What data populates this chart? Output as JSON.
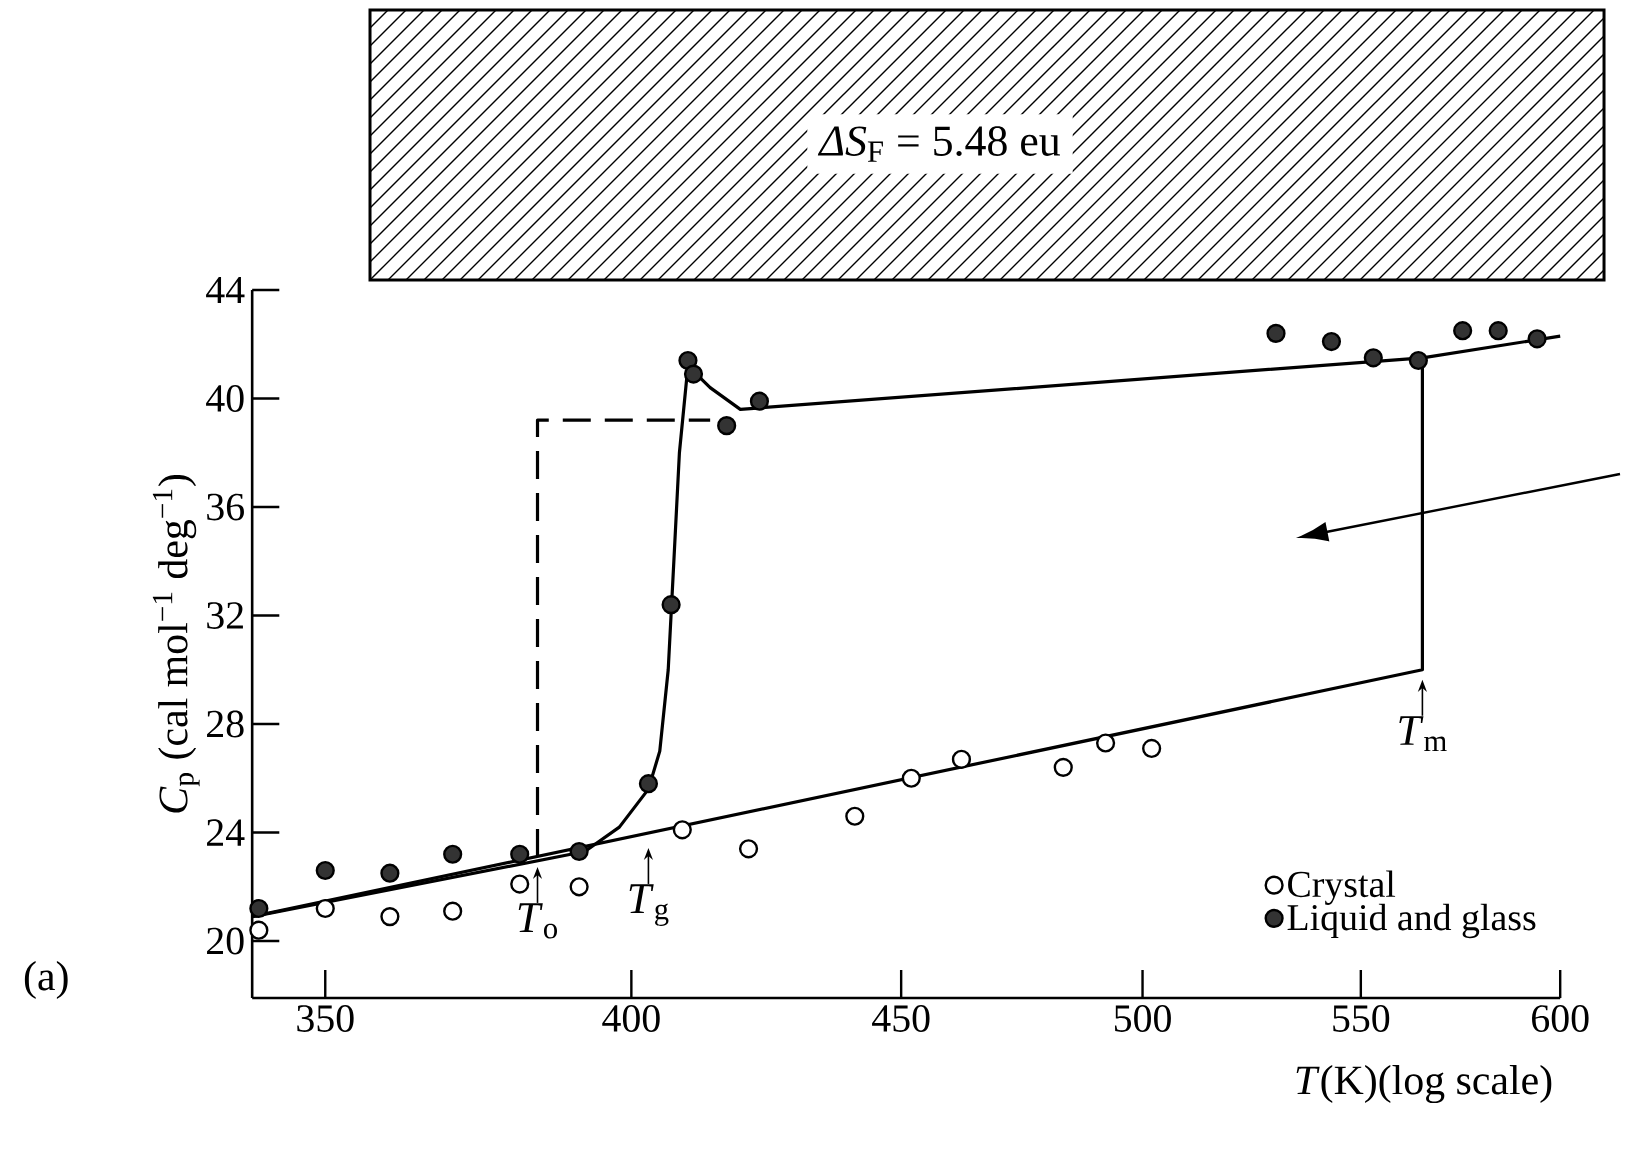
{
  "chart_data": {
    "type": "scatter",
    "xlabel": "*T*(K)(log scale)",
    "ylabel": "*C*$_{p}$ (cal mol$^{−1}$ deg$^{−1}$)",
    "series": [
      {
        "name": "Crystal",
        "color": "#ffffff",
        "marker": "circle",
        "x": [
          340,
          350,
          360,
          370,
          381,
          391,
          409,
          421,
          441,
          452,
          462,
          483,
          492,
          502
        ],
        "values": [
          20.4,
          21.2,
          20.9,
          21.1,
          22.1,
          22.0,
          24.1,
          23.4,
          24.6,
          26.0,
          26.7,
          26.4,
          27.3,
          27.1
        ]
      },
      {
        "name": "Liquid and glass",
        "color": "#333333",
        "marker": "circle",
        "x": [
          340,
          350,
          360,
          370,
          381,
          391,
          403,
          407,
          410,
          411,
          417,
          423,
          530,
          543,
          553,
          564,
          575,
          584,
          594
        ],
        "values": [
          21.2,
          22.6,
          22.5,
          23.2,
          23.2,
          23.3,
          25.8,
          32.4,
          41.4,
          40.9,
          39.0,
          39.9,
          42.4,
          42.1,
          41.5,
          41.4,
          42.5,
          42.5,
          42.2
        ]
      },
      {
        "type": "line",
        "color": "#000000",
        "marker": "none",
        "x": [
          339,
          565,
          565
        ],
        "values": [
          20.9,
          30.0,
          41.5
        ]
      },
      {
        "type": "line",
        "color": "#000000",
        "marker": "none",
        "x": [
          339,
          392,
          398,
          403,
          405,
          406.5,
          407.5,
          408.5,
          410,
          414,
          419.5,
          565,
          600
        ],
        "values": [
          20.9,
          23.3,
          24.2,
          25.6,
          27.0,
          30.0,
          34.0,
          38.0,
          41.2,
          40.4,
          39.6,
          41.5,
          42.3
        ]
      },
      {
        "type": "line",
        "color": "#000000",
        "marker": "none",
        "line_style": "dashed",
        "x": [
          384,
          384,
          414
        ],
        "values": [
          23.1,
          39.2,
          39.2
        ]
      }
    ],
    "log": "x",
    "legend": "bottom right",
    "xlim": [
      339,
      600
    ],
    "ylim": [
      17.9,
      44
    ],
    "xticks": [
      350,
      400,
      450,
      500,
      550,
      600
    ],
    "yticks": [
      20,
      24,
      28,
      32,
      36,
      40,
      44
    ],
    "annotations": [
      "*ΔS*$_{F}$ = 5.48 eu",
      "(a)",
      {
        "text": "*T*$_{o}$",
        "x": 384,
        "y": 23.1
      },
      {
        "text": "*T*$_{g}$",
        "x": 403,
        "y": 23.8
      },
      {
        "text": "*T*$_{m}$",
        "x": 565,
        "y": 30.0
      }
    ]
  }
}
